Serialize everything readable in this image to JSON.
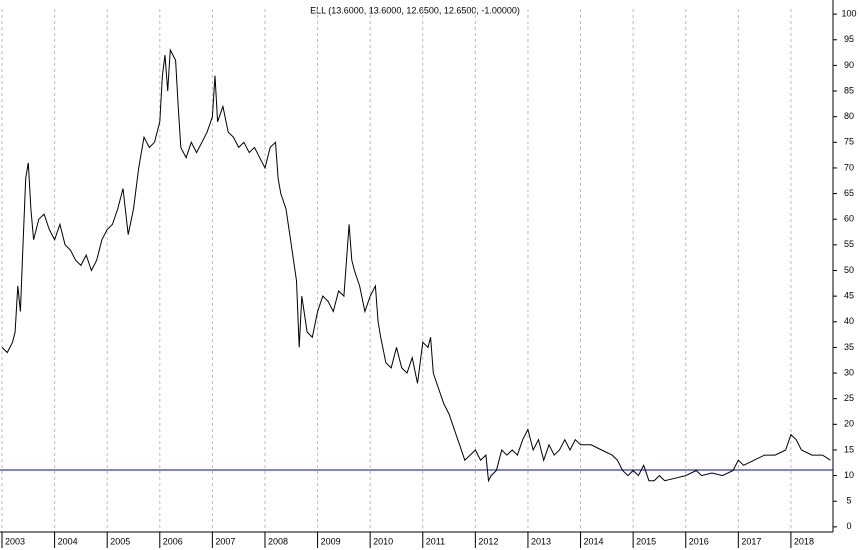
{
  "chart_data": {
    "type": "line",
    "title": "ELL (13.6000, 13.6000, 12.6500, 12.6500, -1.00000)",
    "x": [
      2003.0,
      2003.1,
      2003.2,
      2003.25,
      2003.3,
      2003.35,
      2003.4,
      2003.45,
      2003.5,
      2003.55,
      2003.6,
      2003.7,
      2003.8,
      2003.9,
      2004.0,
      2004.1,
      2004.2,
      2004.3,
      2004.4,
      2004.5,
      2004.6,
      2004.7,
      2004.8,
      2004.9,
      2005.0,
      2005.1,
      2005.2,
      2005.3,
      2005.4,
      2005.5,
      2005.6,
      2005.7,
      2005.8,
      2005.9,
      2006.0,
      2006.05,
      2006.1,
      2006.15,
      2006.2,
      2006.3,
      2006.35,
      2006.4,
      2006.5,
      2006.6,
      2006.7,
      2006.8,
      2006.9,
      2007.0,
      2007.05,
      2007.1,
      2007.2,
      2007.3,
      2007.4,
      2007.5,
      2007.6,
      2007.7,
      2007.8,
      2007.9,
      2008.0,
      2008.1,
      2008.2,
      2008.25,
      2008.3,
      2008.4,
      2008.5,
      2008.6,
      2008.65,
      2008.7,
      2008.8,
      2008.9,
      2009.0,
      2009.1,
      2009.2,
      2009.3,
      2009.4,
      2009.5,
      2009.6,
      2009.65,
      2009.7,
      2009.8,
      2009.9,
      2010.0,
      2010.1,
      2010.15,
      2010.2,
      2010.3,
      2010.4,
      2010.5,
      2010.6,
      2010.7,
      2010.8,
      2010.9,
      2011.0,
      2011.1,
      2011.15,
      2011.2,
      2011.3,
      2011.4,
      2011.5,
      2011.6,
      2011.7,
      2011.8,
      2011.9,
      2012.0,
      2012.1,
      2012.2,
      2012.25,
      2012.3,
      2012.4,
      2012.5,
      2012.6,
      2012.7,
      2012.8,
      2012.9,
      2013.0,
      2013.1,
      2013.2,
      2013.3,
      2013.4,
      2013.5,
      2013.6,
      2013.7,
      2013.8,
      2013.9,
      2014.0,
      2014.2,
      2014.4,
      2014.6,
      2014.7,
      2014.8,
      2014.9,
      2015.0,
      2015.1,
      2015.2,
      2015.3,
      2015.4,
      2015.5,
      2015.6,
      2015.8,
      2016.0,
      2016.2,
      2016.3,
      2016.5,
      2016.7,
      2016.9,
      2017.0,
      2017.1,
      2017.3,
      2017.5,
      2017.7,
      2017.9,
      2018.0,
      2018.1,
      2018.2,
      2018.4,
      2018.6,
      2018.75
    ],
    "series": [
      {
        "name": "ELL",
        "color": "#000000",
        "values": [
          35,
          34,
          36,
          38,
          47,
          42,
          55,
          68,
          71,
          62,
          56,
          60,
          61,
          58,
          56,
          59,
          55,
          54,
          52,
          51,
          53,
          50,
          52,
          56,
          58,
          59,
          62,
          66,
          57,
          62,
          70,
          76,
          74,
          75,
          79,
          88,
          92,
          85,
          93,
          91,
          82,
          74,
          72,
          75,
          73,
          75,
          77,
          80,
          88,
          79,
          82,
          77,
          76,
          74,
          75,
          73,
          74,
          72,
          70,
          74,
          75,
          68,
          65,
          62,
          55,
          48,
          35,
          45,
          38,
          37,
          42,
          45,
          44,
          42,
          46,
          45,
          59,
          52,
          50,
          47,
          42,
          45,
          47,
          40,
          37,
          32,
          31,
          35,
          31,
          30,
          33,
          28,
          36,
          35,
          37,
          30,
          27,
          24,
          22,
          19,
          16,
          13,
          14,
          15,
          13,
          14,
          9,
          10,
          11,
          15,
          14,
          15,
          14,
          17,
          19,
          15,
          17,
          13,
          16,
          14,
          15,
          17,
          15,
          17,
          16,
          16,
          15,
          14,
          13,
          11,
          10,
          11,
          10,
          12,
          9,
          9,
          10,
          9,
          9.5,
          10,
          11,
          10,
          10.5,
          10,
          11,
          13,
          12,
          13,
          14,
          14,
          15,
          18,
          17,
          15,
          14,
          14,
          13
        ]
      }
    ],
    "reference_line": 11.1,
    "reference_color": "#0000cc",
    "xlim": [
      2003,
      2018.8
    ],
    "xticks": [
      2003,
      2004,
      2005,
      2006,
      2007,
      2008,
      2009,
      2010,
      2011,
      2012,
      2013,
      2014,
      2015,
      2016,
      2017,
      2018
    ],
    "ylim": [
      -1,
      101
    ],
    "yticks": [
      0,
      5,
      10,
      15,
      20,
      25,
      30,
      35,
      40,
      45,
      50,
      55,
      60,
      65,
      70,
      75,
      80,
      85,
      90,
      95,
      100
    ],
    "grid": true
  }
}
